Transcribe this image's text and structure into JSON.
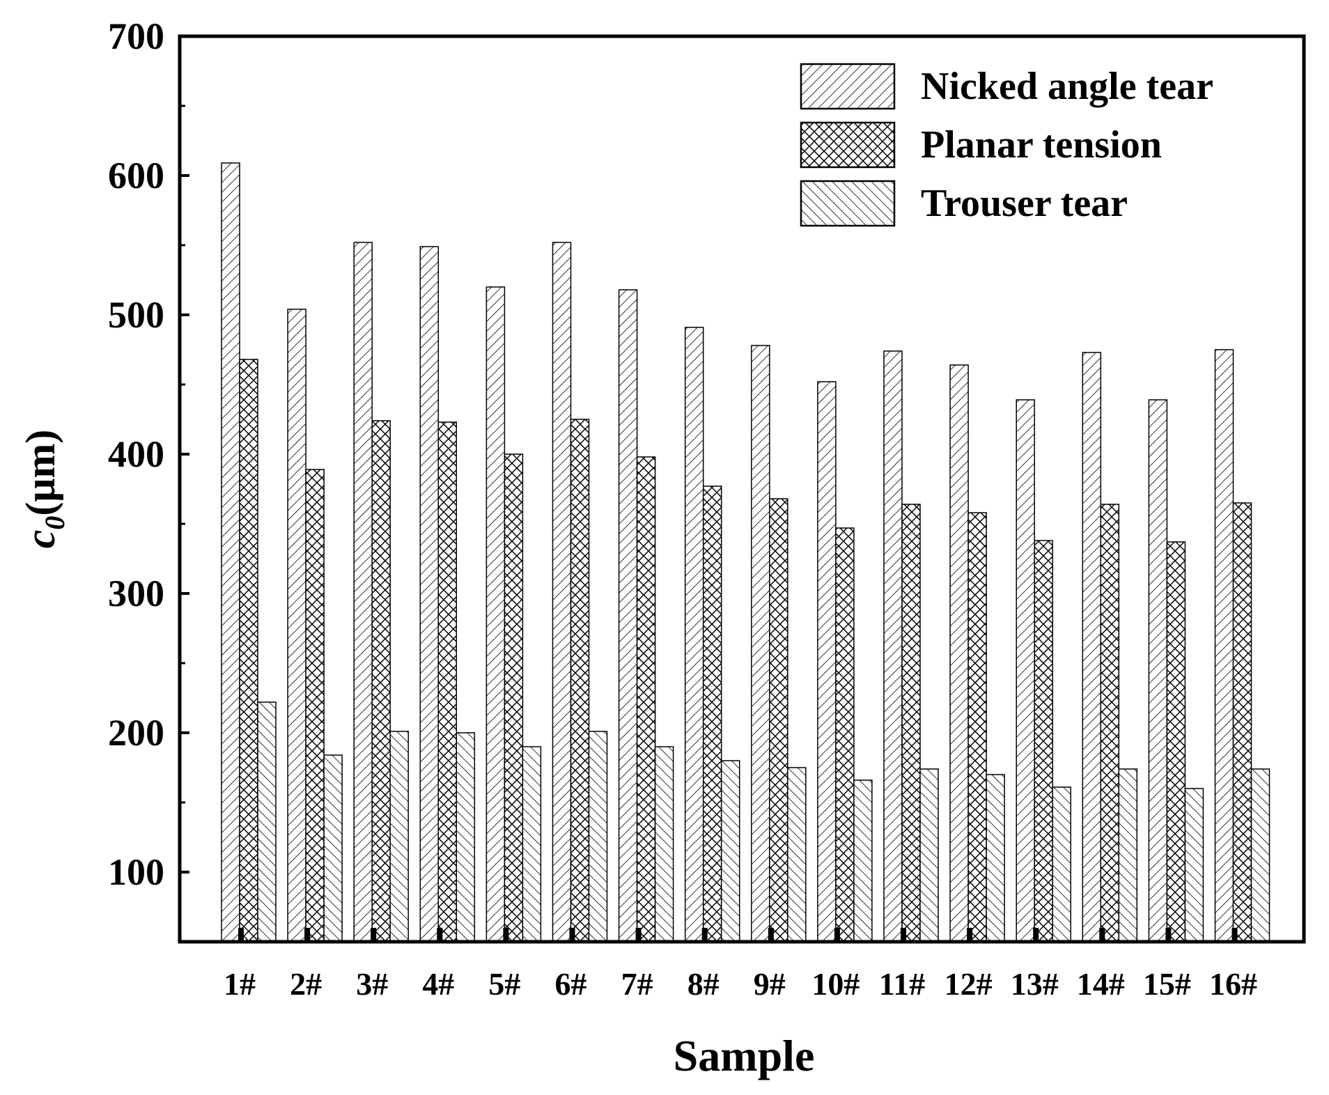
{
  "chart_data": {
    "type": "bar",
    "xlabel": "Sample",
    "ylabel_main": "c",
    "ylabel_sub": "0",
    "ylabel_unit": "(μm)",
    "ylim": [
      50,
      700
    ],
    "yticks": [
      100,
      200,
      300,
      400,
      500,
      600,
      700
    ],
    "categories": [
      "1#",
      "2#",
      "3#",
      "4#",
      "5#",
      "6#",
      "7#",
      "8#",
      "9#",
      "10#",
      "11#",
      "12#",
      "13#",
      "14#",
      "15#",
      "16#"
    ],
    "series": [
      {
        "name": "Nicked angle tear",
        "pattern": "diagonal-forward",
        "values": [
          609,
          504,
          552,
          549,
          520,
          552,
          518,
          491,
          478,
          452,
          474,
          464,
          439,
          473,
          439,
          475
        ]
      },
      {
        "name": "Planar tension",
        "pattern": "crosshatch",
        "values": [
          468,
          389,
          424,
          423,
          400,
          425,
          398,
          377,
          368,
          347,
          364,
          358,
          338,
          364,
          337,
          365
        ]
      },
      {
        "name": "Trouser tear",
        "pattern": "diagonal-backward",
        "values": [
          222,
          184,
          201,
          200,
          190,
          201,
          190,
          180,
          175,
          166,
          174,
          170,
          161,
          174,
          160,
          174
        ]
      }
    ],
    "legend_position": "top-right",
    "grid": false,
    "colors": {
      "stroke": "#000000",
      "background": "#ffffff"
    }
  }
}
